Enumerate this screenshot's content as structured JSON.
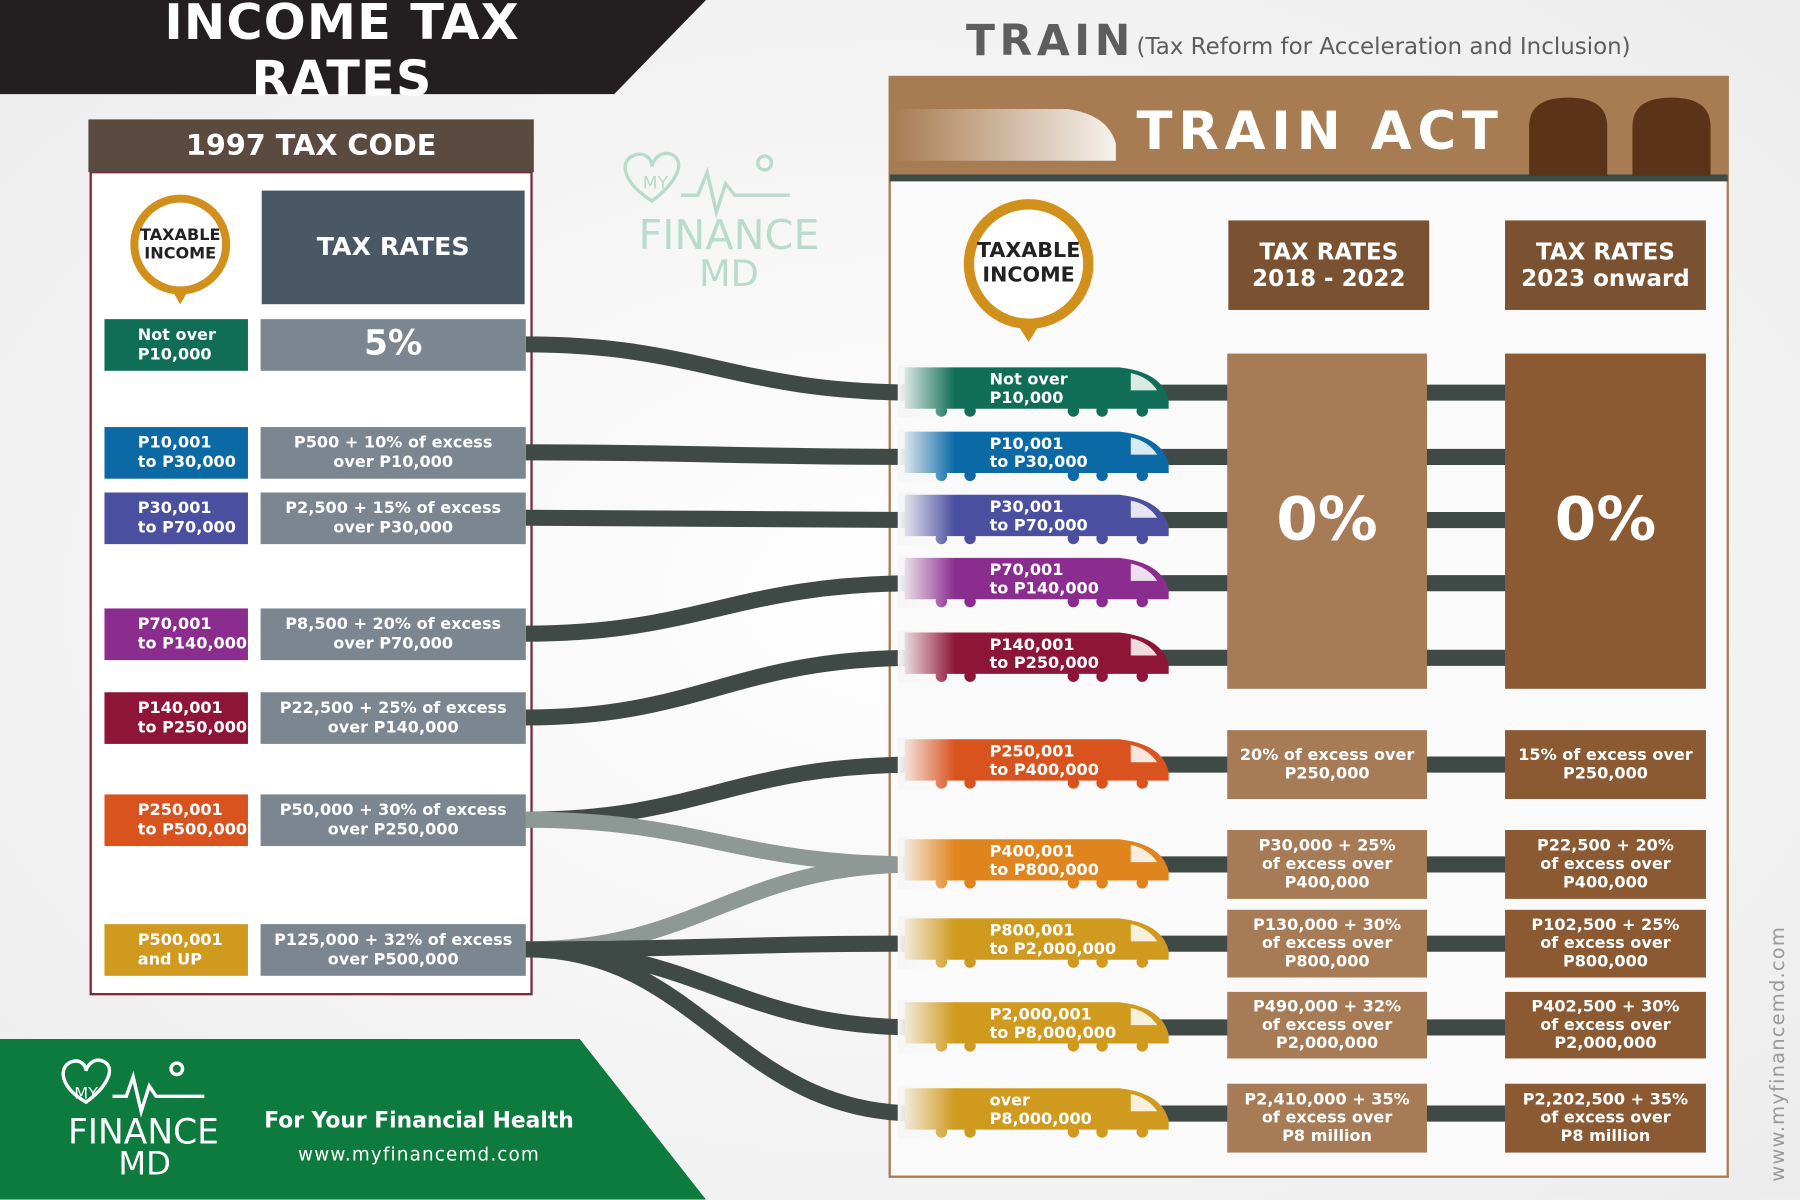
{
  "header": {
    "title": "INCOME TAX RATES",
    "train": "TRAIN",
    "train_full": "(Tax Reform for Acceleration and Inclusion)"
  },
  "old_code": {
    "title": "1997 TAX CODE",
    "income_label": "TAXABLE\nINCOME",
    "rates_label": "TAX RATES",
    "rows": [
      {
        "bracket": "Not over\nP10,000",
        "rate": "5%"
      },
      {
        "bracket": "P10,001\nto P30,000",
        "rate": "P500 + 10% of excess\nover P10,000"
      },
      {
        "bracket": "P30,001\nto P70,000",
        "rate": "P2,500 + 15% of excess\nover P30,000"
      },
      {
        "bracket": "P70,001\nto P140,000",
        "rate": "P8,500 + 20% of excess\nover P70,000"
      },
      {
        "bracket": "P140,001\nto P250,000",
        "rate": "P22,500 + 25% of excess\nover P140,000"
      },
      {
        "bracket": "P250,001\nto P500,000",
        "rate": "P50,000 + 30% of excess\nover P250,000"
      },
      {
        "bracket": "P500,001\nand UP",
        "rate": "P125,000 + 32% of excess\nover P500,000"
      }
    ]
  },
  "train_act": {
    "title": "TRAIN ACT",
    "income_label": "TAXABLE\nINCOME",
    "col_2018": "TAX RATES\n2018 - 2022",
    "col_2023": "TAX RATES\n2023 onward",
    "brackets": [
      "Not over\nP10,000",
      "P10,001\nto P30,000",
      "P30,001\nto P70,000",
      "P70,001\nto P140,000",
      "P140,001\nto P250,000",
      "P250,001\nto P400,000",
      "P400,001\nto P800,000",
      "P800,001\nto P2,000,000",
      "P2,000,001\nto P8,000,000",
      "over\nP8,000,000"
    ],
    "zero_2018": "0%",
    "zero_2023": "0%",
    "rates_2018": [
      "20% of excess over\nP250,000",
      "P30,000 + 25%\nof excess over\nP400,000",
      "P130,000 + 30%\nof excess over\nP800,000",
      "P490,000 + 32%\nof excess over\nP2,000,000",
      "P2,410,000 + 35%\nof excess over\nP8 million"
    ],
    "rates_2023": [
      "15% of excess over\nP250,000",
      "P22,500 + 20%\nof excess over\nP400,000",
      "P102,500 + 25%\nof excess over\nP800,000",
      "P402,500 + 30%\nof excess over\nP2,000,000",
      "P2,202,500 + 35%\nof excess over\nP8 million"
    ]
  },
  "logo": {
    "my": "MY",
    "finance": "FINANCE",
    "md": "MD"
  },
  "footer": {
    "tagline": "For Your Financial Health",
    "url": "www.myfinancemd.com"
  },
  "side_url": "www.myfinancemd.com"
}
